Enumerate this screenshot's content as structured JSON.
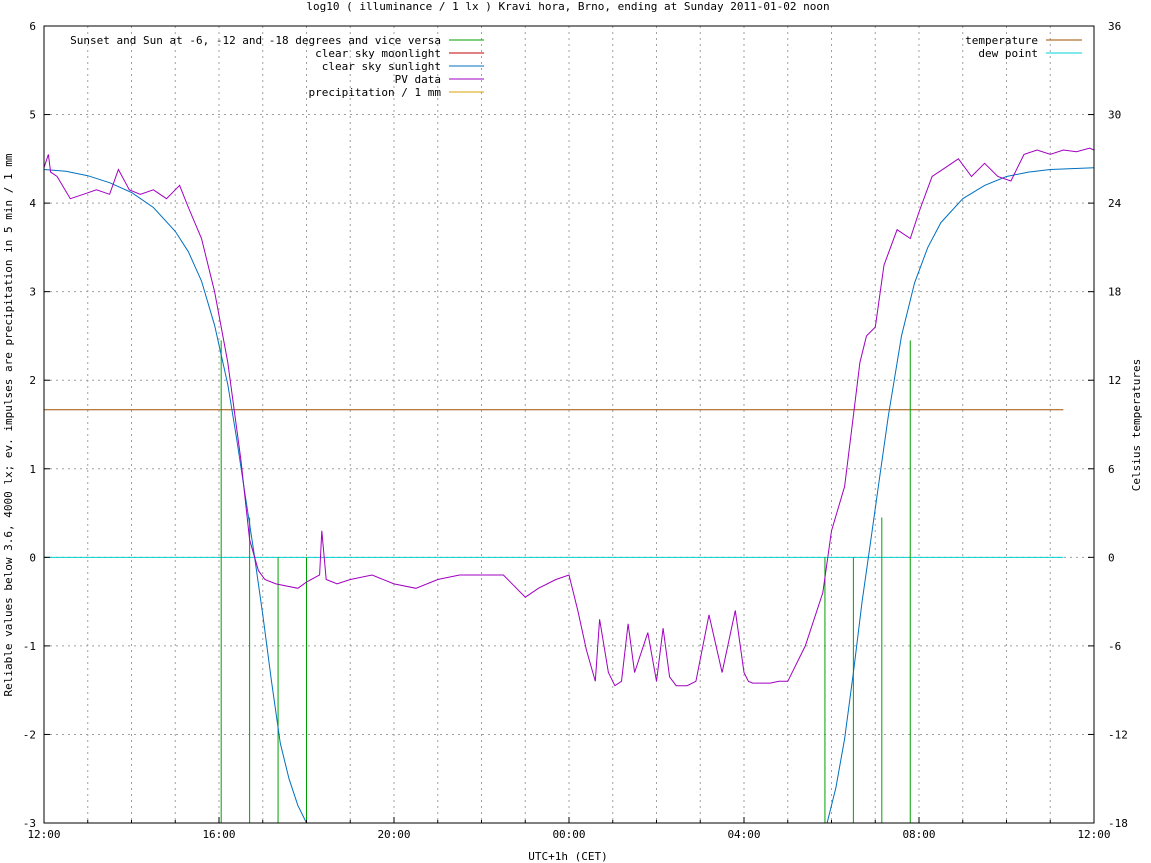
{
  "chart_data": {
    "type": "line",
    "title": "log10 ( illuminance / 1 lx ) Kravi hora, Brno, ending at Sunday 2011-01-02 noon",
    "xlabel": "UTC+1h (CET)",
    "ylabel": "Reliable values below 3.6, 4000 lx; ev. impulses are precipitation in 5 min / 1 mm",
    "y2label": "Celsius temperatures",
    "x_tick_labels": [
      "12:00",
      "16:00",
      "20:00",
      "00:00",
      "04:00",
      "08:00",
      "12:00"
    ],
    "y_ticks": [
      "6",
      "5",
      "4",
      "3",
      "2",
      "1",
      "0",
      "-1",
      "-2",
      "-3"
    ],
    "y2_ticks": [
      "36",
      "30",
      "24",
      "18",
      "12",
      "6",
      "0",
      "-6",
      "-12",
      "-18"
    ],
    "xlim_hours": [
      0,
      24
    ],
    "ylim": [
      -3,
      6
    ],
    "y2lim": [
      -18,
      36
    ],
    "grid": true,
    "legend_left": "top-left",
    "legend_right": "top-right",
    "legend": [
      {
        "name": "Sunset and Sun at -6, -12 and -18 degrees and vice versa",
        "color": "#00a000"
      },
      {
        "name": "clear sky moonlight",
        "color": "#c00000"
      },
      {
        "name": "clear sky sunlight",
        "color": "#0070c0"
      },
      {
        "name": "PV data",
        "color": "#a000c0"
      },
      {
        "name": "precipitation / 1 mm",
        "color": "#d4a000"
      },
      {
        "name": "temperature",
        "color": "#a05000"
      },
      {
        "name": "dew point",
        "color": "#00d0d0"
      }
    ],
    "sun_events_hours": [
      4.05,
      4.7,
      5.35,
      6.0,
      17.85,
      18.5,
      19.15,
      19.8
    ],
    "sun_event_tops": [
      2.45,
      0.45,
      0,
      0,
      0,
      0,
      0.45,
      2.45
    ],
    "temperature_celsius": 10,
    "dew_point_celsius": 0,
    "clear_sky_sunlight": {
      "x": [
        0,
        0.5,
        1,
        1.5,
        2,
        2.5,
        3,
        3.3,
        3.6,
        3.9,
        4.2,
        4.4,
        4.6,
        4.8,
        5.0,
        5.2,
        5.4,
        5.6,
        5.8,
        6.0,
        17.9,
        18.1,
        18.3,
        18.5,
        18.7,
        18.9,
        19.1,
        19.3,
        19.6,
        19.9,
        20.2,
        20.5,
        21,
        21.5,
        22,
        22.5,
        23,
        23.5,
        24
      ],
      "y": [
        4.38,
        4.36,
        4.31,
        4.23,
        4.12,
        3.95,
        3.68,
        3.45,
        3.12,
        2.62,
        1.95,
        1.35,
        0.7,
        0.05,
        -0.65,
        -1.4,
        -2.1,
        -2.5,
        -2.8,
        -3.0,
        -3.0,
        -2.6,
        -2.05,
        -1.3,
        -0.5,
        0.2,
        0.9,
        1.6,
        2.5,
        3.1,
        3.5,
        3.78,
        4.05,
        4.2,
        4.3,
        4.35,
        4.38,
        4.39,
        4.4
      ]
    },
    "pv_data": {
      "x": [
        0,
        0.1,
        0.15,
        0.3,
        0.6,
        0.9,
        1.2,
        1.5,
        1.7,
        1.95,
        2.2,
        2.5,
        2.8,
        3.0,
        3.1,
        3.3,
        3.6,
        3.9,
        4.2,
        4.5,
        4.7,
        4.9,
        5.05,
        5.3,
        5.8,
        6.0,
        6.3,
        6.35,
        6.45,
        6.7,
        7.0,
        7.5,
        8.0,
        8.5,
        9.0,
        9.5,
        10.0,
        10.5,
        11.0,
        11.3,
        11.7,
        12.0,
        12.2,
        12.4,
        12.6,
        12.7,
        12.9,
        13.05,
        13.2,
        13.35,
        13.5,
        13.8,
        14.0,
        14.15,
        14.3,
        14.45,
        14.7,
        14.9,
        15.2,
        15.5,
        15.8,
        16.0,
        16.1,
        16.2,
        16.4,
        16.6,
        16.8,
        17.0,
        17.4,
        17.8,
        18.0,
        18.3,
        18.5,
        18.65,
        18.8,
        19.0,
        19.2,
        19.5,
        19.8,
        20.0,
        20.3,
        20.6,
        20.9,
        21.2,
        21.5,
        21.8,
        22.1,
        22.4,
        22.7,
        23.0,
        23.3,
        23.6,
        23.9,
        24.0
      ],
      "y": [
        4.4,
        4.55,
        4.35,
        4.3,
        4.05,
        4.1,
        4.15,
        4.1,
        4.38,
        4.15,
        4.1,
        4.15,
        4.05,
        4.15,
        4.2,
        3.95,
        3.6,
        3.0,
        2.2,
        1.1,
        0.2,
        -0.15,
        -0.25,
        -0.3,
        -0.35,
        -0.28,
        -0.2,
        0.3,
        -0.25,
        -0.3,
        -0.25,
        -0.2,
        -0.3,
        -0.35,
        -0.25,
        -0.2,
        -0.2,
        -0.2,
        -0.45,
        -0.35,
        -0.25,
        -0.2,
        -0.6,
        -1.05,
        -1.4,
        -0.7,
        -1.3,
        -1.45,
        -1.4,
        -0.75,
        -1.3,
        -0.85,
        -1.4,
        -0.8,
        -1.35,
        -1.45,
        -1.45,
        -1.4,
        -0.65,
        -1.3,
        -0.6,
        -1.3,
        -1.4,
        -1.42,
        -1.42,
        -1.42,
        -1.4,
        -1.4,
        -1.0,
        -0.4,
        0.3,
        0.8,
        1.6,
        2.2,
        2.5,
        2.6,
        3.3,
        3.7,
        3.6,
        3.9,
        4.3,
        4.4,
        4.5,
        4.3,
        4.45,
        4.3,
        4.25,
        4.55,
        4.6,
        4.55,
        4.6,
        4.58,
        4.62,
        4.6
      ]
    }
  }
}
